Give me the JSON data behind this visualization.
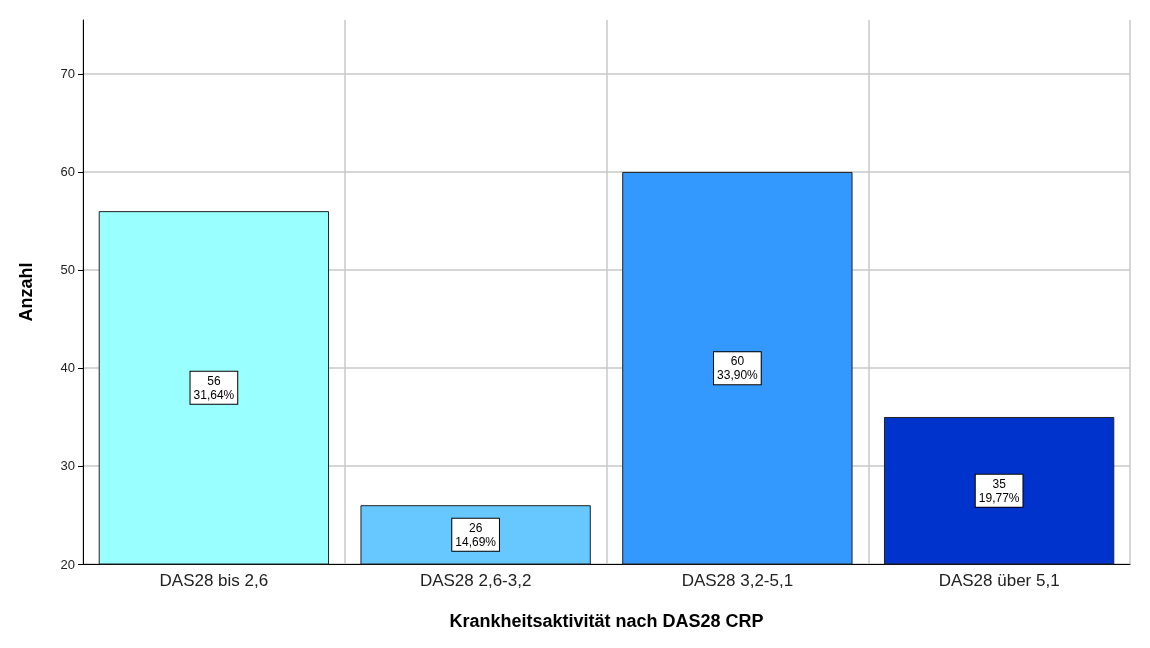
{
  "chart_data": {
    "type": "bar",
    "xlabel": "Krankheitsaktivität nach DAS28 CRP",
    "ylabel": "Anzahl",
    "categories": [
      "DAS28 bis 2,6",
      "DAS28 2,6-3,2",
      "DAS28 3,2-5,1",
      "DAS28 über 5,1"
    ],
    "values": [
      56,
      26,
      60,
      35
    ],
    "colors": [
      "#99ffff",
      "#66c8ff",
      "#3399ff",
      "#0033cc"
    ],
    "value_labels": [
      "56\n31,64%",
      "26\n14,69%",
      "60\n33,90%",
      "35\n19,77%"
    ],
    "ylim": [
      20,
      75.5
    ],
    "yticks": [
      20,
      30,
      40,
      50,
      60,
      70
    ],
    "grid": true
  }
}
